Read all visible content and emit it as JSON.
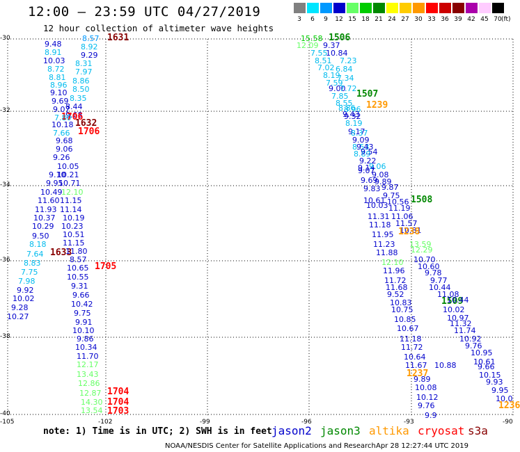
{
  "title": "12:00 – 23:59 UTC 04/27/2019",
  "subtitle": "12 hour collection of altimeter wave heights",
  "legend": {
    "unit": "(ft)",
    "items": [
      {
        "label": "3",
        "color": "#808080"
      },
      {
        "label": "6",
        "color": "#00e5ff"
      },
      {
        "label": "9",
        "color": "#0099ff"
      },
      {
        "label": "12",
        "color": "#0000cc"
      },
      {
        "label": "15",
        "color": "#66ff66"
      },
      {
        "label": "18",
        "color": "#00cc00"
      },
      {
        "label": "21",
        "color": "#008800"
      },
      {
        "label": "24",
        "color": "#ffff00"
      },
      {
        "label": "27",
        "color": "#ffcc00"
      },
      {
        "label": "30",
        "color": "#ff9900"
      },
      {
        "label": "33",
        "color": "#ff0000"
      },
      {
        "label": "36",
        "color": "#cc0000"
      },
      {
        "label": "39",
        "color": "#880000"
      },
      {
        "label": "42",
        "color": "#aa00aa"
      },
      {
        "label": "45",
        "color": "#ffccff"
      },
      {
        "label": "70",
        "color": "#000000"
      }
    ]
  },
  "lat_labels": [
    "-30",
    "-32",
    "-34",
    "-36",
    "-38",
    "-40"
  ],
  "lon_labels": [
    "-105",
    "-102",
    "-99",
    "-96",
    "-93",
    "-90"
  ],
  "observations": [
    {
      "t": "8.57",
      "c": "#0099ff",
      "big": false
    },
    {
      "t": "1631",
      "c": "#880000",
      "big": true
    },
    {
      "t": "9.48",
      "c": "#0000cc",
      "big": false
    },
    {
      "t": "8.92",
      "c": "#00bbee",
      "big": false
    },
    {
      "t": "8.91",
      "c": "#00bbee",
      "big": false
    },
    {
      "t": "9.29",
      "c": "#0000cc",
      "big": false
    },
    {
      "t": "10.03",
      "c": "#0000cc",
      "big": false
    },
    {
      "t": "8.31",
      "c": "#00bbee",
      "big": false
    },
    {
      "t": "8.72",
      "c": "#00bbee",
      "big": false
    },
    {
      "t": "7.97",
      "c": "#00bbee",
      "big": false
    },
    {
      "t": "8.81",
      "c": "#00bbee",
      "big": false
    },
    {
      "t": "8.86",
      "c": "#00bbee",
      "big": false
    },
    {
      "t": "8.96",
      "c": "#00bbee",
      "big": false
    },
    {
      "t": "8.50",
      "c": "#00bbee",
      "big": false
    },
    {
      "t": "9.10",
      "c": "#0000cc",
      "big": false
    },
    {
      "t": "8.35",
      "c": "#00bbee",
      "big": false
    },
    {
      "t": "9.69",
      "c": "#0000cc",
      "big": false
    },
    {
      "t": "8.44",
      "c": "#0000cc",
      "big": false
    },
    {
      "t": "9.07",
      "c": "#0000cc",
      "big": false
    },
    {
      "t": "9.68",
      "c": "#0000cc",
      "big": false
    },
    {
      "t": "1706",
      "c": "#ff0000",
      "big": true
    },
    {
      "t": "7.80",
      "c": "#00bbee",
      "big": false
    },
    {
      "t": "10.18",
      "c": "#0000cc",
      "big": false
    },
    {
      "t": "1632",
      "c": "#880000",
      "big": true
    },
    {
      "t": "7.66",
      "c": "#00bbee",
      "big": false
    },
    {
      "t": "1706",
      "c": "#ff0000",
      "big": true
    },
    {
      "t": "9.68",
      "c": "#0000cc",
      "big": false
    },
    {
      "t": "9.06",
      "c": "#0000cc",
      "big": false
    },
    {
      "t": "9.26",
      "c": "#0000cc",
      "big": false
    },
    {
      "t": "10.05",
      "c": "#0000cc",
      "big": false
    },
    {
      "t": "9.10",
      "c": "#0000cc",
      "big": false
    },
    {
      "t": "10.21",
      "c": "#0000cc",
      "big": false
    },
    {
      "t": "9.95",
      "c": "#0000cc",
      "big": false
    },
    {
      "t": "10.71",
      "c": "#0000cc",
      "big": false
    },
    {
      "t": "10.49",
      "c": "#0000cc",
      "big": false
    },
    {
      "t": "12.10",
      "c": "#66ff66",
      "big": false
    },
    {
      "t": "11.60",
      "c": "#0000cc",
      "big": false
    },
    {
      "t": "11.15",
      "c": "#0000cc",
      "big": false
    },
    {
      "t": "11.93",
      "c": "#0000cc",
      "big": false
    },
    {
      "t": "11.14",
      "c": "#0000cc",
      "big": false
    },
    {
      "t": "10.37",
      "c": "#0000cc",
      "big": false
    },
    {
      "t": "10.19",
      "c": "#0000cc",
      "big": false
    },
    {
      "t": "10.29",
      "c": "#0000cc",
      "big": false
    },
    {
      "t": "10.23",
      "c": "#0000cc",
      "big": false
    },
    {
      "t": "9.50",
      "c": "#0000cc",
      "big": false
    },
    {
      "t": "10.51",
      "c": "#0000cc",
      "big": false
    },
    {
      "t": "8.18",
      "c": "#00bbee",
      "big": false
    },
    {
      "t": "11.15",
      "c": "#0000cc",
      "big": false
    },
    {
      "t": "7.64",
      "c": "#00bbee",
      "big": false
    },
    {
      "t": "1633",
      "c": "#880000",
      "big": true
    },
    {
      "t": "11.80",
      "c": "#0000cc",
      "big": false
    },
    {
      "t": "8.83",
      "c": "#00bbee",
      "big": false
    },
    {
      "t": "8.57",
      "c": "#0000cc",
      "big": false
    },
    {
      "t": "10.65",
      "c": "#0000cc",
      "big": false
    },
    {
      "t": "1705",
      "c": "#ff0000",
      "big": true
    },
    {
      "t": "7.75",
      "c": "#00bbee",
      "big": false
    },
    {
      "t": "10.55",
      "c": "#0000cc",
      "big": false
    },
    {
      "t": "7.98",
      "c": "#00bbee",
      "big": false
    },
    {
      "t": "9.31",
      "c": "#0000cc",
      "big": false
    },
    {
      "t": "9.92",
      "c": "#0000cc",
      "big": false
    },
    {
      "t": "9.66",
      "c": "#0000cc",
      "big": false
    },
    {
      "t": "10.02",
      "c": "#0000cc",
      "big": false
    },
    {
      "t": "10.42",
      "c": "#0000cc",
      "big": false
    },
    {
      "t": "9.28",
      "c": "#0000cc",
      "big": false
    },
    {
      "t": "9.75",
      "c": "#0000cc",
      "big": false
    },
    {
      "t": "10.27",
      "c": "#0000cc",
      "big": false
    },
    {
      "t": "9.91",
      "c": "#0000cc",
      "big": false
    },
    {
      "t": "10.10",
      "c": "#0000cc",
      "big": false
    },
    {
      "t": "9.86",
      "c": "#0000cc",
      "big": false
    },
    {
      "t": "10.34",
      "c": "#0000cc",
      "big": false
    },
    {
      "t": "11.70",
      "c": "#0000cc",
      "big": false
    },
    {
      "t": "12.17",
      "c": "#66ff66",
      "big": false
    },
    {
      "t": "13.43",
      "c": "#66ff66",
      "big": false
    },
    {
      "t": "12.86",
      "c": "#66ff66",
      "big": false
    },
    {
      "t": "12.87",
      "c": "#66ff66",
      "big": false
    },
    {
      "t": "1704",
      "c": "#ff0000",
      "big": true
    },
    {
      "t": "14.30",
      "c": "#66ff66",
      "big": false
    },
    {
      "t": "1704",
      "c": "#ff0000",
      "big": true
    },
    {
      "t": "13.54",
      "c": "#66ff66",
      "big": false
    },
    {
      "t": "1703",
      "c": "#ff0000",
      "big": true
    },
    {
      "t": "15.58",
      "c": "#00cc00",
      "big": false
    },
    {
      "t": "1506",
      "c": "#008800",
      "big": true
    },
    {
      "t": "12.09",
      "c": "#66ff66",
      "big": false
    },
    {
      "t": "9.37",
      "c": "#0000cc",
      "big": false
    },
    {
      "t": "7.55",
      "c": "#00bbee",
      "big": false
    },
    {
      "t": "10.84",
      "c": "#0000cc",
      "big": false
    },
    {
      "t": "8.51",
      "c": "#00bbee",
      "big": false
    },
    {
      "t": "7.23",
      "c": "#00bbee",
      "big": false
    },
    {
      "t": "7.02",
      "c": "#00bbee",
      "big": false
    },
    {
      "t": "6.84",
      "c": "#00bbee",
      "big": false
    },
    {
      "t": "8.19",
      "c": "#00bbee",
      "big": false
    },
    {
      "t": "7.34",
      "c": "#00bbee",
      "big": false
    },
    {
      "t": "7.59",
      "c": "#00bbee",
      "big": false
    },
    {
      "t": "9.00",
      "c": "#0000cc",
      "big": false
    },
    {
      "t": "7.72",
      "c": "#00bbee",
      "big": false
    },
    {
      "t": "7.85",
      "c": "#00bbee",
      "big": false
    },
    {
      "t": "1507",
      "c": "#008800",
      "big": true
    },
    {
      "t": "8.55",
      "c": "#00bbee",
      "big": false
    },
    {
      "t": "8.86",
      "c": "#00bbee",
      "big": false
    },
    {
      "t": "8.96",
      "c": "#00bbee",
      "big": false
    },
    {
      "t": "1239",
      "c": "#ff9900",
      "big": true
    },
    {
      "t": "9.43",
      "c": "#0000cc",
      "big": false
    },
    {
      "t": "9.32",
      "c": "#0000cc",
      "big": false
    },
    {
      "t": "8.19",
      "c": "#00bbee",
      "big": false
    },
    {
      "t": "9.17",
      "c": "#0000cc",
      "big": false
    },
    {
      "t": "8.37",
      "c": "#00bbee",
      "big": false
    },
    {
      "t": "9.09",
      "c": "#0000cc",
      "big": false
    },
    {
      "t": "8.53",
      "c": "#00bbee",
      "big": false
    },
    {
      "t": "9.43",
      "c": "#0000cc",
      "big": false
    },
    {
      "t": "8.89",
      "c": "#00bbee",
      "big": false
    },
    {
      "t": "9.54",
      "c": "#0000cc",
      "big": false
    },
    {
      "t": "9.22",
      "c": "#0000cc",
      "big": false
    },
    {
      "t": "9.14",
      "c": "#0000cc",
      "big": false
    },
    {
      "t": "9.06",
      "c": "#00bbee",
      "big": false
    },
    {
      "t": "9.07",
      "c": "#0000cc",
      "big": false
    },
    {
      "t": "9.08",
      "c": "#0000cc",
      "big": false
    },
    {
      "t": "9.69",
      "c": "#0000cc",
      "big": false
    },
    {
      "t": "9.89",
      "c": "#0000cc",
      "big": false
    },
    {
      "t": "9.83",
      "c": "#0000cc",
      "big": false
    },
    {
      "t": "9.87",
      "c": "#0000cc",
      "big": false
    },
    {
      "t": "9.75",
      "c": "#0000cc",
      "big": false
    },
    {
      "t": "10.61",
      "c": "#0000cc",
      "big": false
    },
    {
      "t": "10.56",
      "c": "#0000cc",
      "big": false
    },
    {
      "t": "1508",
      "c": "#008800",
      "big": true
    },
    {
      "t": "10.03",
      "c": "#0000cc",
      "big": false
    },
    {
      "t": "11.19",
      "c": "#0000cc",
      "big": false
    },
    {
      "t": "11.31",
      "c": "#0000cc",
      "big": false
    },
    {
      "t": "11.06",
      "c": "#0000cc",
      "big": false
    },
    {
      "t": "11.18",
      "c": "#0000cc",
      "big": false
    },
    {
      "t": "11.57",
      "c": "#0000cc",
      "big": false
    },
    {
      "t": "10.81",
      "c": "#0000cc",
      "big": false
    },
    {
      "t": "11.95",
      "c": "#0000cc",
      "big": false
    },
    {
      "t": "1238",
      "c": "#ff9900",
      "big": true
    },
    {
      "t": "11.23",
      "c": "#0000cc",
      "big": false
    },
    {
      "t": "13.59",
      "c": "#66ff66",
      "big": false
    },
    {
      "t": "11.88",
      "c": "#0000cc",
      "big": false
    },
    {
      "t": "12.29",
      "c": "#66ff66",
      "big": false
    },
    {
      "t": "10.70",
      "c": "#0000cc",
      "big": false
    },
    {
      "t": "12.10",
      "c": "#66ff66",
      "big": false
    },
    {
      "t": "10.60",
      "c": "#0000cc",
      "big": false
    },
    {
      "t": "11.96",
      "c": "#0000cc",
      "big": false
    },
    {
      "t": "9.78",
      "c": "#0000cc",
      "big": false
    },
    {
      "t": "11.72",
      "c": "#0000cc",
      "big": false
    },
    {
      "t": "9.77",
      "c": "#0000cc",
      "big": false
    },
    {
      "t": "11.68",
      "c": "#0000cc",
      "big": false
    },
    {
      "t": "10.44",
      "c": "#0000cc",
      "big": false
    },
    {
      "t": "9.52",
      "c": "#0000cc",
      "big": false
    },
    {
      "t": "11.08",
      "c": "#0000cc",
      "big": false
    },
    {
      "t": "10.83",
      "c": "#0000cc",
      "big": false
    },
    {
      "t": "1509",
      "c": "#008800",
      "big": true
    },
    {
      "t": "10.44",
      "c": "#0000cc",
      "big": false
    },
    {
      "t": "10.75",
      "c": "#0000cc",
      "big": false
    },
    {
      "t": "10.02",
      "c": "#0000cc",
      "big": false
    },
    {
      "t": "10.85",
      "c": "#0000cc",
      "big": false
    },
    {
      "t": "10.97",
      "c": "#0000cc",
      "big": false
    },
    {
      "t": "11.32",
      "c": "#0000cc",
      "big": false
    },
    {
      "t": "10.67",
      "c": "#0000cc",
      "big": false
    },
    {
      "t": "11.74",
      "c": "#0000cc",
      "big": false
    },
    {
      "t": "11.18",
      "c": "#0000cc",
      "big": false
    },
    {
      "t": "10.92",
      "c": "#0000cc",
      "big": false
    },
    {
      "t": "11.72",
      "c": "#0000cc",
      "big": false
    },
    {
      "t": "9.76",
      "c": "#0000cc",
      "big": false
    },
    {
      "t": "10.64",
      "c": "#0000cc",
      "big": false
    },
    {
      "t": "10.95",
      "c": "#0000cc",
      "big": false
    },
    {
      "t": "11.67",
      "c": "#0000cc",
      "big": false
    },
    {
      "t": "10.61",
      "c": "#0000cc",
      "big": false
    },
    {
      "t": "1237",
      "c": "#ff9900",
      "big": true
    },
    {
      "t": "10.88",
      "c": "#0000cc",
      "big": false
    },
    {
      "t": "9.66",
      "c": "#0000cc",
      "big": false
    },
    {
      "t": "10.15",
      "c": "#0000cc",
      "big": false
    },
    {
      "t": "9.89",
      "c": "#0000cc",
      "big": false
    },
    {
      "t": "9.93",
      "c": "#0000cc",
      "big": false
    },
    {
      "t": "10.08",
      "c": "#0000cc",
      "big": false
    },
    {
      "t": "9.95",
      "c": "#0000cc",
      "big": false
    },
    {
      "t": "10.12",
      "c": "#0000cc",
      "big": false
    },
    {
      "t": "10.0",
      "c": "#0000cc",
      "big": false
    },
    {
      "t": "9.76",
      "c": "#0000cc",
      "big": false
    },
    {
      "t": "1236",
      "c": "#ff9900",
      "big": true
    },
    {
      "t": "9.9",
      "c": "#0000cc",
      "big": false
    }
  ],
  "note": "note: 1) Time is in UTC; 2) SWH is in feet",
  "satellites": [
    {
      "name": "jason2",
      "color": "#0000cc"
    },
    {
      "name": "jason3",
      "color": "#008800"
    },
    {
      "name": "altika",
      "color": "#ff9900"
    },
    {
      "name": "cryosat",
      "color": "#ff0000"
    },
    {
      "name": "s3a",
      "color": "#880000"
    }
  ],
  "credit": "NOAA/NESDIS Center for Satellite Applications and Research",
  "timestamp": "Apr 28 12:27:44 UTC 2019"
}
